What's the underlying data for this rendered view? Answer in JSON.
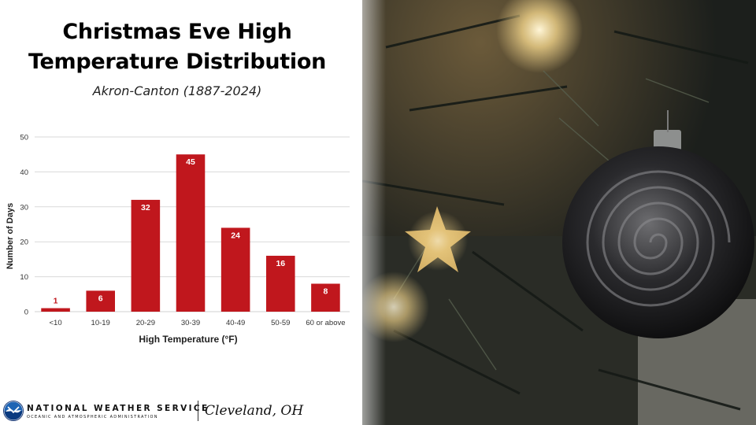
{
  "title_line1": "Christmas Eve High",
  "title_line2": "Temperature Distribution",
  "subtitle": "Akron-Canton (1887-2024)",
  "footer": {
    "org_name": "NATIONAL WEATHER SERVICE",
    "org_subtitle": "OCEANIC AND ATMOSPHERIC ADMINISTRATION",
    "office": "Cleveland, OH",
    "logo_icon": "noaa-logo-icon"
  },
  "photo": {
    "description_icon": "christmas-tree-ornament-photo"
  },
  "colors": {
    "bar": "#c0171d",
    "label_outside": "#c0171d",
    "label_inside": "#ffffff",
    "grid": "#d9d9d9",
    "axis_text": "#333333"
  },
  "chart_data": {
    "type": "bar",
    "categories": [
      "<10",
      "10-19",
      "20-29",
      "30-39",
      "40-49",
      "50-59",
      "60 or above"
    ],
    "values": [
      1,
      6,
      32,
      45,
      24,
      16,
      8
    ],
    "title": "Christmas Eve High Temperature Distribution",
    "xlabel": "High Temperature (°F)",
    "ylabel": "Number of Days",
    "ylim": [
      0,
      50
    ],
    "yticks": [
      0,
      10,
      20,
      30,
      40,
      50
    ],
    "grid": true,
    "data_labels": true
  }
}
